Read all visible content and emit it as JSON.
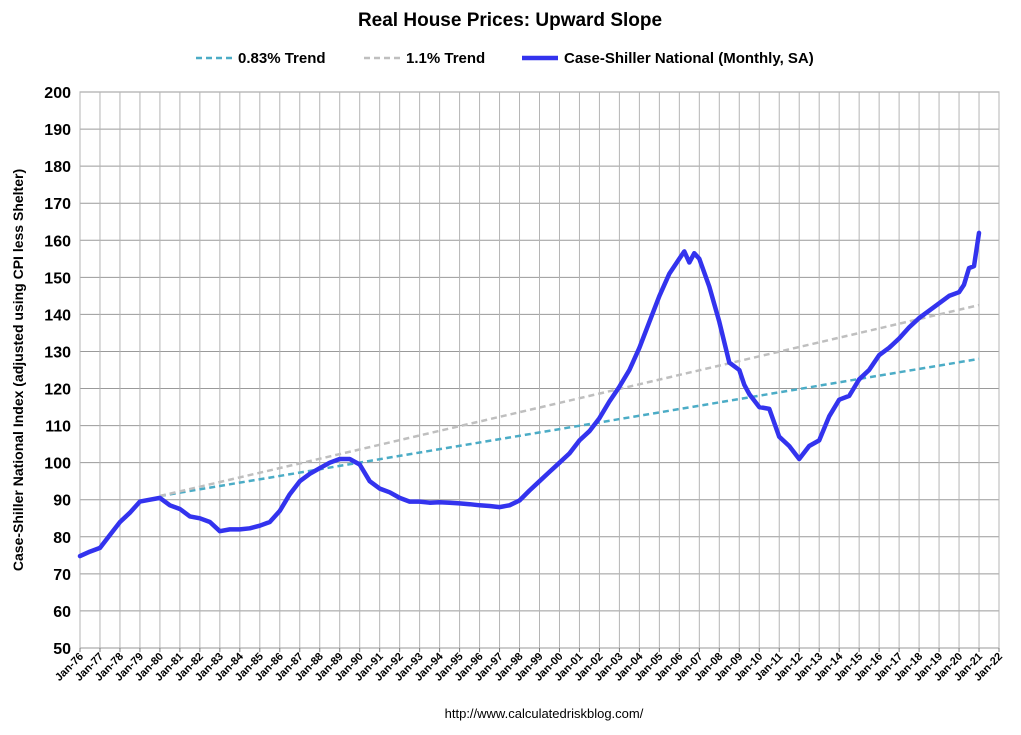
{
  "chart_data": {
    "type": "line",
    "title": "Real House Prices: Upward Slope",
    "ylabel": "Case-Shiller National Index (adjusted using CPI less Shelter)",
    "xlabel": "",
    "ylim": [
      50,
      200
    ],
    "yticks": [
      50,
      60,
      70,
      80,
      90,
      100,
      110,
      120,
      130,
      140,
      150,
      160,
      170,
      180,
      190,
      200
    ],
    "xlim": [
      1976,
      2022
    ],
    "xticks": [
      "Jan-76",
      "Jan-77",
      "Jan-78",
      "Jan-79",
      "Jan-80",
      "Jan-81",
      "Jan-82",
      "Jan-83",
      "Jan-84",
      "Jan-85",
      "Jan-86",
      "Jan-87",
      "Jan-88",
      "Jan-89",
      "Jan-90",
      "Jan-91",
      "Jan-92",
      "Jan-93",
      "Jan-94",
      "Jan-95",
      "Jan-96",
      "Jan-97",
      "Jan-98",
      "Jan-99",
      "Jan-00",
      "Jan-01",
      "Jan-02",
      "Jan-03",
      "Jan-04",
      "Jan-05",
      "Jan-06",
      "Jan-07",
      "Jan-08",
      "Jan-09",
      "Jan-10",
      "Jan-11",
      "Jan-12",
      "Jan-13",
      "Jan-14",
      "Jan-15",
      "Jan-16",
      "Jan-17",
      "Jan-18",
      "Jan-19",
      "Jan-20",
      "Jan-21",
      "Jan-22"
    ],
    "grid": true,
    "legend": "top",
    "source": "http://www.calculatedriskblog.com/",
    "series": [
      {
        "name": "0.83% Trend",
        "color": "#4BACC6",
        "style": "dashed",
        "x": [
          1980.0,
          2021.0
        ],
        "values": [
          91.0,
          128.0
        ]
      },
      {
        "name": "1.1% Trend",
        "color": "#BFBFBF",
        "style": "dashed",
        "x": [
          1980.0,
          2021.0
        ],
        "values": [
          91.0,
          142.5
        ]
      },
      {
        "name": "Case-Shiller National (Monthly, SA)",
        "color": "#3333EE",
        "style": "solid",
        "x": [
          1976.0,
          1976.5,
          1977.0,
          1977.5,
          1978.0,
          1978.5,
          1979.0,
          1979.5,
          1980.0,
          1980.5,
          1981.0,
          1981.5,
          1982.0,
          1982.5,
          1983.0,
          1983.5,
          1984.0,
          1984.5,
          1985.0,
          1985.5,
          1986.0,
          1986.5,
          1987.0,
          1987.5,
          1988.0,
          1988.5,
          1989.0,
          1989.5,
          1990.0,
          1990.5,
          1991.0,
          1991.5,
          1992.0,
          1992.5,
          1993.0,
          1993.5,
          1994.0,
          1994.5,
          1995.0,
          1995.5,
          1996.0,
          1996.5,
          1997.0,
          1997.5,
          1998.0,
          1998.5,
          1999.0,
          1999.5,
          2000.0,
          2000.5,
          2001.0,
          2001.5,
          2002.0,
          2002.5,
          2003.0,
          2003.5,
          2004.0,
          2004.5,
          2005.0,
          2005.5,
          2006.0,
          2006.25,
          2006.5,
          2006.75,
          2007.0,
          2007.5,
          2008.0,
          2008.5,
          2009.0,
          2009.25,
          2009.5,
          2010.0,
          2010.5,
          2011.0,
          2011.5,
          2012.0,
          2012.5,
          2013.0,
          2013.5,
          2014.0,
          2014.5,
          2015.0,
          2015.5,
          2016.0,
          2016.5,
          2017.0,
          2017.5,
          2018.0,
          2018.5,
          2019.0,
          2019.5,
          2020.0,
          2020.25,
          2020.5,
          2020.75,
          2021.0
        ],
        "values": [
          74.8,
          76.0,
          77.0,
          80.5,
          84.0,
          86.5,
          89.5,
          90.0,
          90.5,
          88.5,
          87.5,
          85.5,
          85.0,
          84.0,
          81.5,
          82.0,
          82.0,
          82.3,
          83.0,
          84.0,
          87.0,
          91.5,
          95.0,
          97.0,
          98.5,
          100.0,
          101.0,
          101.0,
          99.5,
          95.0,
          93.0,
          92.0,
          90.5,
          89.5,
          89.5,
          89.2,
          89.3,
          89.2,
          89.0,
          88.8,
          88.5,
          88.3,
          88.0,
          88.5,
          89.8,
          92.5,
          95.0,
          97.5,
          100.0,
          102.5,
          106.0,
          108.5,
          112.0,
          116.5,
          120.5,
          125.0,
          131.0,
          138.0,
          145.0,
          151.0,
          155.0,
          157.0,
          154.0,
          156.5,
          155.0,
          147.5,
          138.0,
          127.0,
          125.0,
          121.0,
          118.5,
          115.0,
          114.5,
          107.0,
          104.5,
          101.0,
          104.5,
          106.0,
          112.5,
          117.0,
          118.0,
          122.5,
          125.0,
          129.0,
          131.0,
          133.5,
          136.5,
          139.0,
          141.0,
          143.0,
          145.0,
          146.0,
          148.0,
          152.5,
          153.0,
          162.0
        ]
      }
    ]
  }
}
